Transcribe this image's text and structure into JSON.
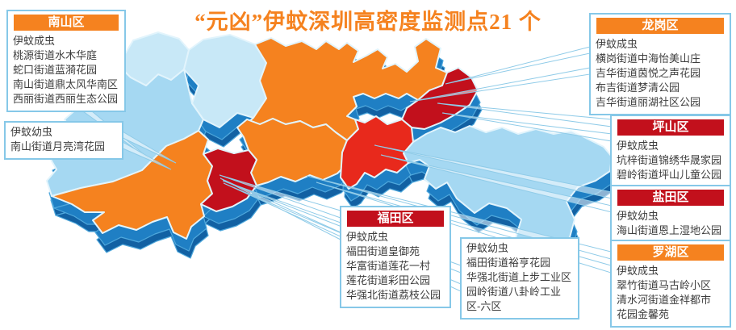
{
  "title": {
    "text": "“元凶”伊蚊深圳高密度监测点21 个"
  },
  "colors": {
    "title": "#F5821F",
    "orange": "#F5821F",
    "red": "#C2101C",
    "bright_red": "#E8291C",
    "light_blue": "#A5D8F2",
    "pale_blue": "#C8E8F7",
    "map_side": "#1F7FC4",
    "map_side_dark": "#1261A3",
    "box_border": "#86C8E8",
    "leader": "#8FCBE8",
    "text": "#3D3D3D"
  },
  "boxes": {
    "nanshan": {
      "district": "南山区",
      "header_color": "orange",
      "lines": [
        "伊蚊成虫",
        "桃源街道水木华庭",
        "蛇口街道蓝漪花园",
        "南山街道鼎太风华南区",
        "西丽街道西丽生态公园"
      ]
    },
    "nanshan_larvae": {
      "district": null,
      "lines": [
        "伊蚊幼虫",
        "南山街道月亮湾花园"
      ]
    },
    "longgang": {
      "district": "龙岗区",
      "header_color": "orange",
      "lines": [
        "伊蚊成虫",
        "横岗街道中海怡美山庄",
        "吉华街道茵悦之声花园",
        "布吉街道梦清公园",
        "吉华街道丽湖社区公园"
      ]
    },
    "pingshan": {
      "district": "坪山区",
      "header_color": "red",
      "lines": [
        "伊蚊成虫",
        "坑梓街道锦绣华晟家园",
        "碧岭街道坪山儿童公园"
      ]
    },
    "yantian": {
      "district": "盐田区",
      "header_color": "red",
      "lines": [
        "伊蚊幼虫",
        "海山街道恩上湿地公园"
      ]
    },
    "luohu": {
      "district": "罗湖区",
      "header_color": "orange",
      "lines": [
        "伊蚊成虫",
        "翠竹街道马古岭小区",
        "清水河街道金祥都市",
        "花园金馨苑"
      ]
    },
    "futian": {
      "district": "福田区",
      "header_color": "red",
      "lines": [
        "伊蚊成虫",
        "福田街道皇御苑",
        "华富街道莲花一村",
        "莲花街道彩田公园",
        "华强北街道荔枝公园"
      ]
    },
    "futian_larvae": {
      "district": null,
      "lines": [
        "伊蚊幼虫",
        "福田街道裕亨花园",
        "华强北街道上步工业区",
        "园岭街道八卦岭工业区-六区"
      ]
    }
  },
  "map": {
    "district_colors": {
      "guangming": "#C8E8F7",
      "longhua": "#C8E8F7",
      "baoan": "#A5D8F2",
      "nanshan": "#F5821F",
      "futian": "#C2101C",
      "luohu": "#F5821F",
      "longgang": "#F5821F",
      "pingshan": "#C2101C",
      "yantian": "#E8291C",
      "dapeng": "#A5D8F2"
    }
  }
}
